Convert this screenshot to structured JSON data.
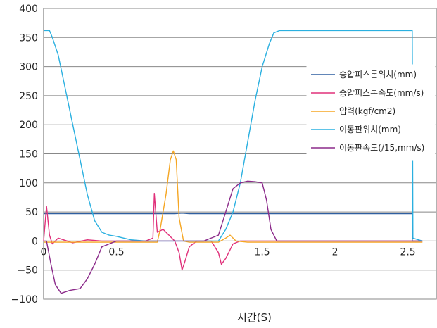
{
  "chart_data": {
    "type": "line",
    "title": "",
    "xlabel": "시간(S)",
    "ylabel": "",
    "xlim": [
      0,
      2.7
    ],
    "ylim": [
      -100,
      400
    ],
    "x_ticks": [
      0,
      0.5,
      1.5,
      2,
      2.5
    ],
    "x_tick_labels": [
      "0",
      "0.5",
      "1.5",
      "2",
      "2.5"
    ],
    "y_ticks": [
      400,
      350,
      300,
      250,
      200,
      150,
      100,
      50,
      0,
      -50,
      -100
    ],
    "y_tick_labels": [
      "400",
      "350",
      "300",
      "250",
      "200",
      "150",
      "100",
      "50",
      "0",
      "−50",
      "−100"
    ],
    "grid": "horizontal",
    "legend_position": "right",
    "series": [
      {
        "name": "승압피스톤위치(mm)",
        "color": "#2f5fa0",
        "points": [
          [
            0.0,
            47
          ],
          [
            0.6,
            47
          ],
          [
            0.9,
            47
          ],
          [
            0.95,
            48
          ],
          [
            1.0,
            47
          ],
          [
            1.2,
            47
          ],
          [
            1.8,
            47
          ],
          [
            2.5,
            47
          ],
          [
            2.53,
            47
          ],
          [
            2.53,
            0
          ],
          [
            2.6,
            0
          ]
        ]
      },
      {
        "name": "승압피스톤속도(mm/s)",
        "color": "#e0307a",
        "points": [
          [
            0.0,
            0
          ],
          [
            0.02,
            60
          ],
          [
            0.04,
            10
          ],
          [
            0.06,
            -5
          ],
          [
            0.1,
            5
          ],
          [
            0.2,
            -3
          ],
          [
            0.3,
            2
          ],
          [
            0.4,
            0
          ],
          [
            0.5,
            0
          ],
          [
            0.6,
            0
          ],
          [
            0.7,
            0
          ],
          [
            0.75,
            5
          ],
          [
            0.76,
            82
          ],
          [
            0.78,
            15
          ],
          [
            0.82,
            20
          ],
          [
            0.86,
            10
          ],
          [
            0.9,
            0
          ],
          [
            0.93,
            -20
          ],
          [
            0.95,
            -50
          ],
          [
            0.97,
            -35
          ],
          [
            1.0,
            -10
          ],
          [
            1.05,
            0
          ],
          [
            1.15,
            0
          ],
          [
            1.2,
            -20
          ],
          [
            1.22,
            -40
          ],
          [
            1.25,
            -30
          ],
          [
            1.3,
            -5
          ],
          [
            1.35,
            0
          ],
          [
            1.5,
            0
          ],
          [
            2.0,
            0
          ],
          [
            2.5,
            0
          ],
          [
            2.6,
            0
          ]
        ]
      },
      {
        "name": "압력(kgf/cm2)",
        "color": "#f5a623",
        "points": [
          [
            0.0,
            -2
          ],
          [
            0.5,
            -2
          ],
          [
            0.78,
            -2
          ],
          [
            0.8,
            20
          ],
          [
            0.84,
            80
          ],
          [
            0.87,
            140
          ],
          [
            0.89,
            155
          ],
          [
            0.91,
            140
          ],
          [
            0.93,
            40
          ],
          [
            0.96,
            0
          ],
          [
            1.0,
            -2
          ],
          [
            1.2,
            -2
          ],
          [
            1.25,
            5
          ],
          [
            1.28,
            10
          ],
          [
            1.32,
            0
          ],
          [
            1.4,
            -2
          ],
          [
            2.6,
            -2
          ]
        ]
      },
      {
        "name": "이동판위치(mm)",
        "color": "#2ab0e0",
        "points": [
          [
            0.0,
            362
          ],
          [
            0.04,
            362
          ],
          [
            0.06,
            350
          ],
          [
            0.1,
            320
          ],
          [
            0.15,
            260
          ],
          [
            0.2,
            200
          ],
          [
            0.25,
            140
          ],
          [
            0.3,
            80
          ],
          [
            0.35,
            35
          ],
          [
            0.4,
            15
          ],
          [
            0.45,
            10
          ],
          [
            0.5,
            8
          ],
          [
            0.55,
            5
          ],
          [
            0.6,
            2
          ],
          [
            0.7,
            0
          ],
          [
            1.1,
            0
          ],
          [
            1.2,
            0
          ],
          [
            1.25,
            20
          ],
          [
            1.3,
            50
          ],
          [
            1.35,
            100
          ],
          [
            1.4,
            170
          ],
          [
            1.45,
            240
          ],
          [
            1.5,
            300
          ],
          [
            1.55,
            340
          ],
          [
            1.58,
            358
          ],
          [
            1.62,
            362
          ],
          [
            2.0,
            362
          ],
          [
            2.4,
            362
          ],
          [
            2.53,
            362
          ],
          [
            2.535,
            5
          ],
          [
            2.6,
            0
          ]
        ]
      },
      {
        "name": "이동판속도(/15,mm/s)",
        "color": "#8b2a8a",
        "points": [
          [
            0.0,
            0
          ],
          [
            0.02,
            0
          ],
          [
            0.05,
            -40
          ],
          [
            0.08,
            -75
          ],
          [
            0.12,
            -90
          ],
          [
            0.18,
            -85
          ],
          [
            0.25,
            -82
          ],
          [
            0.3,
            -65
          ],
          [
            0.35,
            -40
          ],
          [
            0.4,
            -10
          ],
          [
            0.45,
            -5
          ],
          [
            0.5,
            0
          ],
          [
            0.7,
            0
          ],
          [
            1.1,
            0
          ],
          [
            1.2,
            10
          ],
          [
            1.25,
            50
          ],
          [
            1.3,
            90
          ],
          [
            1.35,
            100
          ],
          [
            1.4,
            103
          ],
          [
            1.45,
            102
          ],
          [
            1.5,
            100
          ],
          [
            1.53,
            70
          ],
          [
            1.56,
            20
          ],
          [
            1.6,
            0
          ],
          [
            2.0,
            0
          ],
          [
            2.5,
            0
          ],
          [
            2.6,
            0
          ]
        ]
      }
    ]
  }
}
